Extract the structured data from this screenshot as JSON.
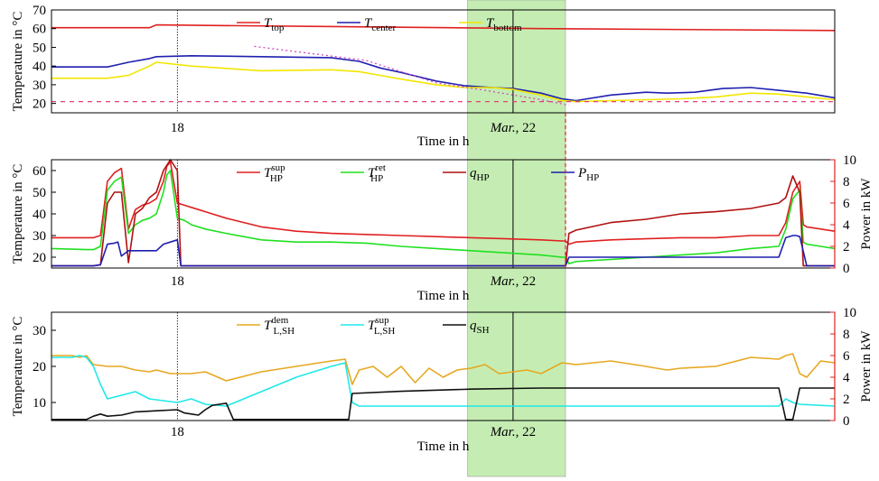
{
  "chart_data": [
    {
      "type": "line",
      "xlabel": "Time in h",
      "ylabel": "Temperature in °C",
      "ylim": [
        15,
        70
      ],
      "yticks": [
        20,
        30,
        40,
        50,
        60,
        70
      ],
      "xticks": [
        {
          "x": 18,
          "label": "18"
        },
        {
          "x": 66,
          "label": "Mar., 22"
        }
      ],
      "xlim": [
        0,
        112
      ],
      "highlight_window": [
        59.5,
        73.5
      ],
      "highlight_color": "#b7e8a0",
      "series": [
        {
          "name": "T_top",
          "color": "#e02020",
          "x": [
            0,
            14,
            15,
            70,
            112
          ],
          "y": [
            60.5,
            60.5,
            62,
            60,
            59
          ]
        },
        {
          "name": "T_center",
          "color": "#1f1fb0",
          "x": [
            0,
            8,
            11,
            14,
            15,
            20,
            30,
            40,
            44,
            47,
            50,
            55,
            59,
            63,
            66,
            70,
            73,
            75,
            80,
            85,
            88,
            92,
            96,
            100,
            104,
            108,
            112
          ],
          "y": [
            39.5,
            39.5,
            42,
            44,
            45,
            45.5,
            45,
            44.5,
            42.5,
            39,
            36.5,
            32,
            29.5,
            28.5,
            28,
            25.5,
            22.5,
            21.5,
            24.5,
            26,
            25.5,
            26,
            28,
            28.5,
            27,
            25.5,
            23
          ]
        },
        {
          "name": "T_bottom",
          "color": "#f2e600",
          "x": [
            0,
            8,
            11,
            14,
            15,
            20,
            30,
            40,
            44,
            47,
            50,
            55,
            59,
            63,
            66,
            70,
            73,
            75,
            80,
            85,
            90,
            95,
            100,
            104,
            108,
            112
          ],
          "y": [
            33.5,
            33.5,
            35,
            40,
            42,
            40,
            37.5,
            38,
            37,
            35,
            33,
            30,
            28.5,
            28.5,
            27.5,
            24.5,
            21.5,
            21,
            21.5,
            22,
            22.5,
            23.5,
            25.5,
            25,
            23.5,
            22
          ]
        },
        {
          "name": "reference",
          "color": "#e0407a",
          "style": "dashed",
          "x": [
            0,
            112
          ],
          "y": [
            21,
            21
          ]
        },
        {
          "name": "trend",
          "color": "#d040c0",
          "style": "dotted",
          "x": [
            29,
            45,
            55,
            62,
            70,
            74
          ],
          "y": [
            50.5,
            43,
            31,
            27,
            22,
            19
          ]
        }
      ],
      "legend": [
        {
          "main": "T",
          "sub": "top",
          "sup": "",
          "color": "#e02020"
        },
        {
          "main": "T",
          "sub": "center",
          "sup": "",
          "color": "#1f1fb0"
        },
        {
          "main": "T",
          "sub": "bottom",
          "sup": "",
          "color": "#f2e600"
        }
      ],
      "grid": false,
      "legend_position": "top"
    },
    {
      "type": "line",
      "xlabel": "Time in h",
      "ylabel": "Temperature in °C",
      "y2label": "Power in kW",
      "ylim": [
        15,
        65
      ],
      "yticks": [
        20,
        30,
        40,
        50,
        60
      ],
      "y2lim": [
        0,
        10
      ],
      "y2ticks": [
        0,
        2,
        4,
        6,
        8,
        10
      ],
      "xticks": [
        {
          "x": 18,
          "label": "18"
        },
        {
          "x": 66,
          "label": "Mar., 22"
        }
      ],
      "xlim": [
        0,
        112
      ],
      "series": [
        {
          "name": "T_HP_sup",
          "color": "#e02020",
          "axis": "left",
          "x": [
            0,
            5,
            6,
            7,
            8,
            9,
            10,
            11,
            12,
            13,
            14,
            15,
            16,
            16.5,
            17,
            18,
            19,
            20,
            21,
            22,
            23,
            25,
            30,
            35,
            40,
            45,
            50,
            55,
            60,
            65,
            70,
            73,
            73.5,
            74,
            75,
            80,
            85,
            90,
            95,
            100,
            104,
            105,
            106,
            107,
            107.5,
            108,
            110,
            112
          ],
          "y": [
            29,
            29,
            29,
            30,
            55,
            59,
            61,
            33,
            42,
            44,
            45,
            47,
            55,
            62,
            64,
            45,
            44,
            43,
            42,
            41,
            40,
            38,
            34,
            32,
            31,
            30.5,
            30,
            29.5,
            29,
            28.5,
            28,
            27.5,
            27.5,
            26,
            27,
            28,
            28.5,
            29,
            29,
            30,
            30,
            36,
            50,
            55,
            35,
            34,
            33,
            32
          ]
        },
        {
          "name": "T_HP_ret",
          "color": "#20e020",
          "axis": "left",
          "x": [
            0,
            5,
            6,
            7,
            8,
            9,
            10,
            11,
            12,
            13,
            14,
            15,
            16,
            16.5,
            17,
            18,
            19,
            20,
            22,
            25,
            30,
            35,
            40,
            45,
            50,
            55,
            60,
            65,
            70,
            73,
            73.5,
            74,
            75,
            80,
            85,
            90,
            95,
            100,
            104,
            105,
            106,
            107,
            107.5,
            108,
            110,
            112
          ],
          "y": [
            24,
            23.5,
            23.5,
            25,
            51,
            55,
            57,
            31,
            35,
            37,
            38,
            40,
            50,
            58,
            60,
            38,
            37,
            35,
            33,
            31,
            28,
            27,
            27,
            26.5,
            25,
            24,
            23,
            22,
            21,
            20,
            20,
            17,
            18,
            19,
            20,
            21,
            22,
            24,
            25,
            33,
            47,
            51,
            27,
            26,
            25,
            24
          ]
        },
        {
          "name": "q_HP",
          "color": "#b01010",
          "axis": "right",
          "x": [
            0,
            5,
            6,
            7,
            8,
            9,
            10,
            11,
            12,
            13,
            14,
            15,
            16,
            17,
            18,
            18.5,
            19,
            73,
            73.5,
            74,
            75,
            80,
            85,
            90,
            95,
            100,
            104,
            105,
            106,
            107,
            107.5,
            108,
            112
          ],
          "y": [
            0.2,
            0.2,
            0.2,
            0.3,
            6,
            7,
            7,
            0.5,
            5,
            5.5,
            6.5,
            7,
            9,
            10,
            9,
            0.2,
            0.2,
            0.2,
            0.2,
            3.2,
            3.5,
            4.2,
            4.5,
            5,
            5.2,
            5.5,
            6,
            6.5,
            8.5,
            7,
            0.2,
            0.2,
            0.2
          ]
        },
        {
          "name": "P_HP",
          "color": "#1f1fb0",
          "axis": "right",
          "x": [
            0,
            6,
            7,
            8,
            9,
            9.5,
            10,
            11,
            15,
            16,
            17,
            18,
            18.5,
            73,
            73.5,
            74,
            80,
            90,
            100,
            104,
            105,
            106,
            106.5,
            107,
            108,
            112
          ],
          "y": [
            0.2,
            0.2,
            0.3,
            2.2,
            2.3,
            2.4,
            1.1,
            1.6,
            1.6,
            2.2,
            2.4,
            2.6,
            0.2,
            0.2,
            0.2,
            1.0,
            1.0,
            1.0,
            1.0,
            1.0,
            2.8,
            3.0,
            3.0,
            2.9,
            0.2,
            0.2
          ]
        }
      ],
      "legend": [
        {
          "main": "T",
          "sub": "HP",
          "sup": "sup",
          "color": "#e02020"
        },
        {
          "main": "T",
          "sub": "HP",
          "sup": "ret",
          "color": "#20e020"
        },
        {
          "main": "q",
          "sub": "HP",
          "sup": "",
          "color": "#b01010"
        },
        {
          "main": "P",
          "sub": "HP",
          "sup": "",
          "color": "#1f1fb0"
        }
      ],
      "grid": false,
      "legend_position": "top"
    },
    {
      "type": "line",
      "xlabel": "Time in h",
      "ylabel": "Temperature in °C",
      "y2label": "Power in kW",
      "ylim": [
        5,
        35
      ],
      "yticks": [
        10,
        20,
        30
      ],
      "y2lim": [
        0,
        10
      ],
      "y2ticks": [
        0,
        2,
        4,
        6,
        8,
        10
      ],
      "xticks": [
        {
          "x": 18,
          "label": "18"
        },
        {
          "x": 66,
          "label": "Mar., 22"
        }
      ],
      "xlim": [
        0,
        112
      ],
      "series": [
        {
          "name": "T_L_SH_dem",
          "color": "#e6a820",
          "axis": "left",
          "x": [
            0,
            3,
            4,
            5,
            6,
            8,
            10,
            12,
            14,
            15,
            17,
            20,
            22,
            25,
            30,
            35,
            40,
            42,
            43,
            44,
            46,
            48,
            50,
            52,
            54,
            56,
            58,
            60,
            62,
            64,
            68,
            70,
            73,
            75,
            80,
            85,
            88,
            90,
            95,
            98,
            100,
            104,
            105,
            106,
            107,
            108,
            110,
            112
          ],
          "y": [
            23,
            23,
            22.5,
            23,
            20.5,
            20,
            20,
            19,
            18.5,
            19,
            18,
            18,
            18.5,
            16,
            18.5,
            20,
            21.5,
            22,
            15,
            19,
            20,
            17,
            20,
            15.5,
            19.5,
            17,
            19,
            19.5,
            20.5,
            18,
            19,
            18,
            21,
            20.5,
            21.5,
            20,
            19,
            19.5,
            20,
            21.5,
            22.5,
            22,
            23,
            23.5,
            18,
            17,
            21.5,
            21
          ]
        },
        {
          "name": "T_L_SH_sup",
          "color": "#20e8e8",
          "axis": "left",
          "x": [
            0,
            3,
            4,
            5,
            6,
            7,
            8,
            10,
            12,
            14,
            16,
            18,
            20,
            22,
            25,
            30,
            35,
            40,
            42,
            43,
            44,
            50,
            60,
            70,
            80,
            90,
            100,
            104,
            105,
            106,
            107,
            112
          ],
          "y": [
            22.5,
            22.5,
            23,
            22.5,
            20,
            15,
            11,
            12,
            13,
            11,
            10.5,
            10,
            11,
            9.5,
            9,
            13,
            17,
            20,
            21,
            10,
            9,
            9,
            9,
            9,
            9,
            9,
            9,
            9,
            11,
            10,
            9.5,
            9
          ]
        },
        {
          "name": "q_SH",
          "color": "#111111",
          "axis": "right",
          "x": [
            0,
            5,
            6,
            7,
            8,
            10,
            12,
            15,
            18,
            19,
            20,
            21,
            22,
            23,
            24,
            25,
            26,
            40,
            42,
            42.5,
            43,
            50,
            60,
            70,
            80,
            90,
            100,
            104,
            105,
            106,
            107,
            108,
            112
          ],
          "y": [
            0.1,
            0.1,
            0.4,
            0.6,
            0.4,
            0.5,
            0.8,
            0.9,
            1.0,
            0.7,
            0.6,
            0.5,
            1.0,
            1.4,
            1.5,
            1.6,
            0.1,
            0.1,
            0.1,
            0.1,
            2.5,
            2.7,
            2.9,
            3.0,
            3.0,
            3.0,
            3.0,
            3.0,
            0.1,
            0.1,
            3.0,
            3.0,
            3.0
          ]
        }
      ],
      "legend": [
        {
          "main": "T",
          "sub": "L,SH",
          "sup": "dem",
          "color": "#e6a820"
        },
        {
          "main": "T",
          "sub": "L,SH",
          "sup": "sup",
          "color": "#20e8e8"
        },
        {
          "main": "q",
          "sub": "SH",
          "sup": "",
          "color": "#111111"
        }
      ],
      "grid": false,
      "legend_position": "top"
    }
  ]
}
